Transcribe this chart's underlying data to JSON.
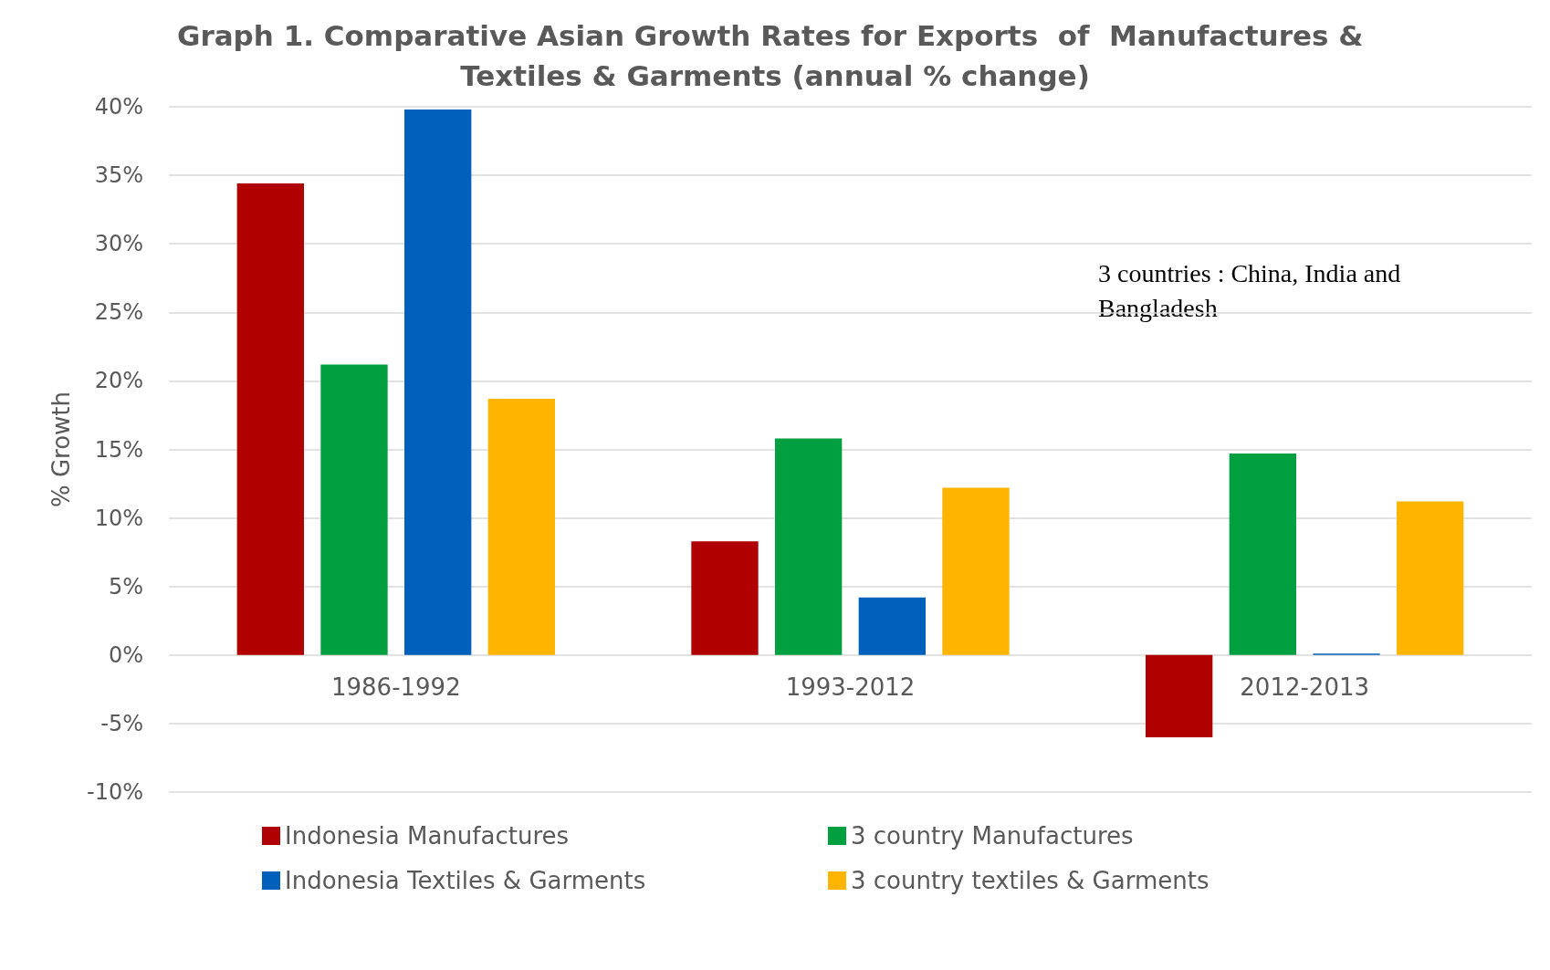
{
  "chart_data": {
    "type": "bar",
    "title": "Graph 1. Comparative Asian Growth Rates for Exports  of  Manufactures & Textiles & Garments (annual % change)",
    "ylabel": "% Growth",
    "categories": [
      "1986-1992",
      "1993-2012",
      "2012-2013"
    ],
    "series": [
      {
        "name": "Indonesia Manufactures",
        "color": "#b00000",
        "values": [
          34.4,
          8.3,
          -6.0
        ]
      },
      {
        "name": "3 country Manufactures",
        "color": "#00a040",
        "values": [
          21.2,
          15.8,
          14.7
        ]
      },
      {
        "name": "Indonesia Textiles & Garments",
        "color": "#0060bb",
        "values": [
          39.8,
          4.2,
          0.1
        ]
      },
      {
        "name": "3 country textiles & Garments",
        "color": "#ffb400",
        "values": [
          18.7,
          12.2,
          11.2
        ]
      }
    ],
    "ylim": [
      -10,
      40
    ],
    "yticks": [
      {
        "value": -10,
        "label": "-10%"
      },
      {
        "value": -5,
        "label": "-5%"
      },
      {
        "value": 0,
        "label": "0%"
      },
      {
        "value": 5,
        "label": "5%"
      },
      {
        "value": 10,
        "label": "10%"
      },
      {
        "value": 15,
        "label": "15%"
      },
      {
        "value": 20,
        "label": "20%"
      },
      {
        "value": 25,
        "label": "25%"
      },
      {
        "value": 30,
        "label": "30%"
      },
      {
        "value": 35,
        "label": "35%"
      },
      {
        "value": 40,
        "label": "40%"
      }
    ],
    "grid": "y",
    "legend": "bottom",
    "annotations": [
      "3 countries : China, India and Bangladesh"
    ]
  }
}
